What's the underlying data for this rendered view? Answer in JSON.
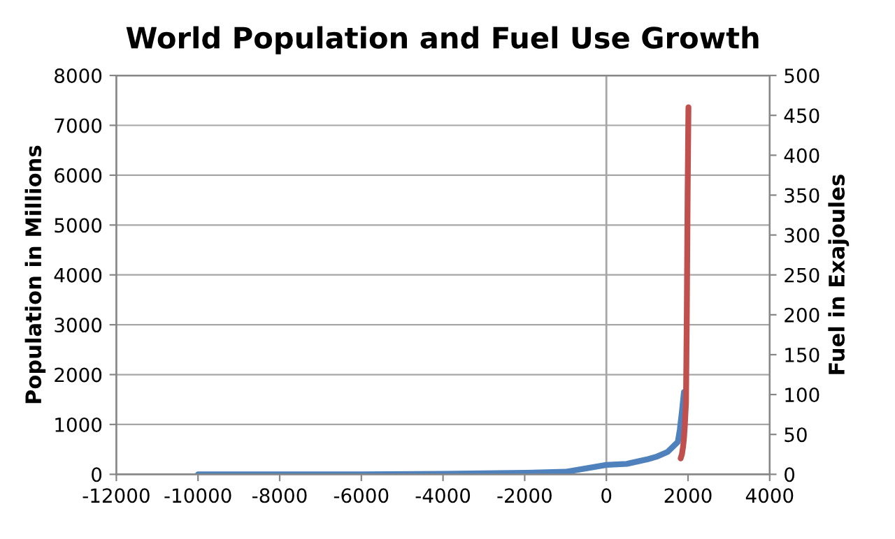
{
  "chart_data": {
    "type": "line",
    "title": "World Population and Fuel Use Growth",
    "ylabel": "Population in Millions",
    "y2label": "Fuel in Exajoules",
    "xlim": [
      -12000,
      4000
    ],
    "xticks": [
      -12000,
      -10000,
      -8000,
      -6000,
      -4000,
      -2000,
      0,
      2000,
      4000
    ],
    "ylim": [
      0,
      8000
    ],
    "yticks": [
      0,
      1000,
      2000,
      3000,
      4000,
      5000,
      6000,
      7000,
      8000
    ],
    "y2lim": [
      0,
      500
    ],
    "y2ticks": [
      0,
      50,
      100,
      150,
      200,
      250,
      300,
      350,
      400,
      450,
      500
    ],
    "grid": "y",
    "marker": "none",
    "line_style": "solid",
    "ref_lines": [
      {
        "axis": "x",
        "value": 0,
        "color": "#a6a6a6"
      }
    ],
    "series": [
      {
        "color": "#4f81bd",
        "x": [
          -10000,
          -8000,
          -6000,
          -4000,
          -2000,
          -1000,
          0,
          500,
          1000,
          1250,
          1500,
          1750,
          1800,
          1850,
          1900
        ],
        "values": [
          0,
          0,
          0,
          10,
          30,
          50,
          190,
          210,
          300,
          360,
          450,
          650,
          900,
          1250,
          1650
        ]
      },
      {
        "color": "#c0504d",
        "axis": "y2",
        "x": [
          1820,
          1850,
          1880,
          1900,
          1920,
          1950,
          1970,
          1990,
          2010
        ],
        "values": [
          20,
          25,
          35,
          45,
          60,
          90,
          200,
          350,
          460
        ]
      }
    ]
  }
}
